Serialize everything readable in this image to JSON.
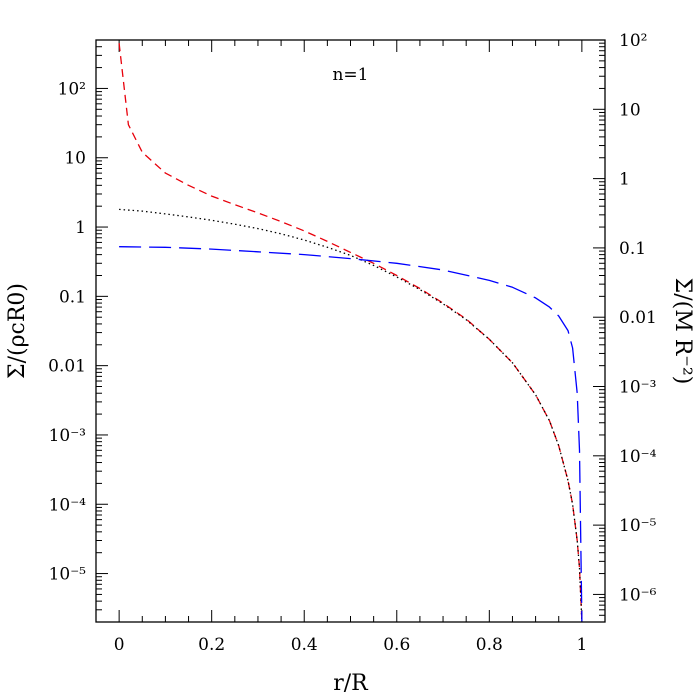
{
  "chart_data": {
    "type": "line",
    "annotation": "n=1",
    "xlabel": "r/R",
    "ylabel_left": "Σ/(ρcR0)",
    "ylabel_right": "Σ/(M R⁻²)",
    "xlim": [
      -0.05,
      1.05
    ],
    "xticks": [
      0,
      0.2,
      0.4,
      0.6,
      0.8,
      1
    ],
    "xtick_labels": [
      "0",
      "0.2",
      "0.4",
      "0.6",
      "0.8",
      "1"
    ],
    "left_axis": {
      "scale": "log",
      "ylim": [
        2e-06,
        500
      ],
      "ticks": [
        100,
        10,
        1,
        0.1,
        0.01,
        0.001,
        0.0001,
        1e-05
      ],
      "tick_labels": [
        "10²",
        "10",
        "1",
        "0.1",
        "0.01",
        "10⁻³",
        "10⁻⁴",
        "10⁻⁵"
      ]
    },
    "right_axis": {
      "scale": "log",
      "ylim": [
        4e-07,
        100
      ],
      "ticks": [
        100,
        10,
        1,
        0.1,
        0.01,
        0.001,
        0.0001,
        1e-05,
        1e-06
      ],
      "tick_labels": [
        "10²",
        "10",
        "1",
        "0.1",
        "0.01",
        "10⁻³",
        "10⁻⁴",
        "10⁻⁵",
        "10⁻⁶"
      ]
    },
    "series": [
      {
        "style": "short-dash",
        "color": "#e8000b",
        "x": [
          0.0,
          0.02,
          0.05,
          0.1,
          0.15,
          0.2,
          0.25,
          0.3,
          0.35,
          0.4,
          0.45,
          0.5,
          0.55,
          0.6,
          0.65,
          0.7,
          0.75,
          0.8,
          0.85,
          0.9,
          0.93,
          0.95,
          0.97,
          0.98,
          0.99,
          0.995,
          1.0
        ],
        "y": [
          450,
          30,
          12,
          6,
          4,
          2.8,
          2.1,
          1.6,
          1.2,
          0.88,
          0.62,
          0.43,
          0.3,
          0.2,
          0.13,
          0.08,
          0.047,
          0.024,
          0.011,
          0.0038,
          0.0016,
          0.0007,
          0.00022,
          0.0001,
          3e-05,
          1.2e-05,
          2e-06
        ]
      },
      {
        "style": "dotted",
        "color": "#000000",
        "x": [
          0.0,
          0.05,
          0.1,
          0.15,
          0.2,
          0.25,
          0.3,
          0.35,
          0.4,
          0.45,
          0.5,
          0.55,
          0.6,
          0.65,
          0.7,
          0.75,
          0.8,
          0.85,
          0.9,
          0.93,
          0.95,
          0.97,
          0.98,
          0.99,
          0.995,
          1.0
        ],
        "y": [
          1.8,
          1.7,
          1.55,
          1.4,
          1.25,
          1.1,
          0.95,
          0.8,
          0.65,
          0.51,
          0.39,
          0.28,
          0.19,
          0.125,
          0.078,
          0.046,
          0.024,
          0.011,
          0.0038,
          0.0016,
          0.0007,
          0.00022,
          0.0001,
          3e-05,
          1.2e-05,
          2e-06
        ]
      },
      {
        "style": "long-dash",
        "color": "#0000ff",
        "x": [
          0.0,
          0.1,
          0.2,
          0.3,
          0.4,
          0.5,
          0.6,
          0.7,
          0.8,
          0.85,
          0.9,
          0.93,
          0.95,
          0.97,
          0.98,
          0.99,
          0.995,
          1.0
        ],
        "y": [
          0.52,
          0.51,
          0.48,
          0.44,
          0.4,
          0.35,
          0.3,
          0.24,
          0.17,
          0.135,
          0.095,
          0.07,
          0.052,
          0.032,
          0.018,
          0.004,
          0.0006,
          2e-06
        ]
      }
    ]
  }
}
